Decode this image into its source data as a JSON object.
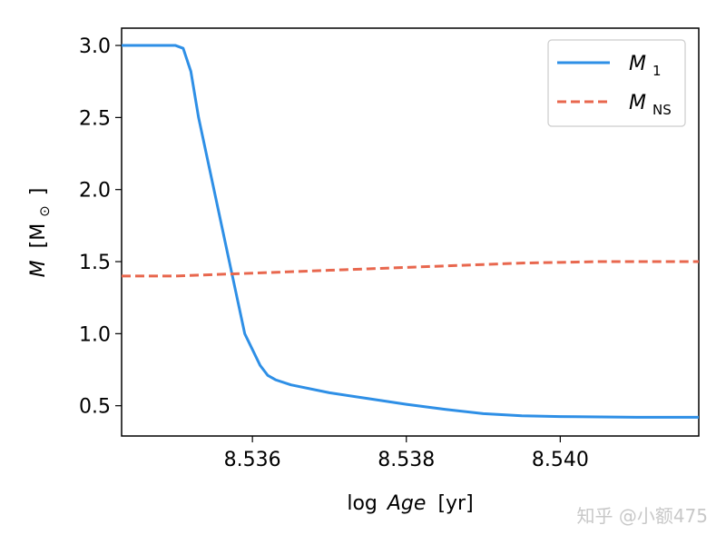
{
  "chart_data": {
    "type": "line",
    "xlabel_prefix": "log",
    "xlabel_var": "Age",
    "xlabel_unit": "[yr]",
    "ylabel_var": "M",
    "ylabel_unit": "[M",
    "ylabel_sun": "⊙",
    "ylabel_close": "]",
    "xlim": [
      8.5343,
      8.5418
    ],
    "ylim": [
      0.29,
      3.12
    ],
    "x_ticks": [
      8.536,
      8.538,
      8.54
    ],
    "x_tick_labels": [
      "8.536",
      "8.538",
      "8.540"
    ],
    "y_ticks": [
      0.5,
      1.0,
      1.5,
      2.0,
      2.5,
      3.0
    ],
    "y_tick_labels": [
      "0.5",
      "1.0",
      "1.5",
      "2.0",
      "2.5",
      "3.0"
    ],
    "grid": false,
    "legend_position": "top-right",
    "series": [
      {
        "name": "M",
        "name_sub": "1",
        "color": "#2e8fe6",
        "style": "solid",
        "x": [
          8.5343,
          8.5348,
          8.535,
          8.5351,
          8.5352,
          8.5353,
          8.5355,
          8.5357,
          8.5359,
          8.5361,
          8.5362,
          8.5363,
          8.5365,
          8.537,
          8.5375,
          8.538,
          8.5385,
          8.539,
          8.5395,
          8.54,
          8.541,
          8.5418
        ],
        "y": [
          3.0,
          3.0,
          3.0,
          2.98,
          2.82,
          2.5,
          2.0,
          1.5,
          1.0,
          0.78,
          0.71,
          0.68,
          0.645,
          0.59,
          0.55,
          0.51,
          0.475,
          0.445,
          0.43,
          0.425,
          0.42,
          0.42
        ]
      },
      {
        "name": "M",
        "name_sub": "NS",
        "color": "#e8674e",
        "style": "dashed",
        "x": [
          8.5343,
          8.535,
          8.5355,
          8.536,
          8.5365,
          8.537,
          8.5375,
          8.538,
          8.5385,
          8.539,
          8.5395,
          8.54,
          8.5405,
          8.541,
          8.5418
        ],
        "y": [
          1.4,
          1.4,
          1.41,
          1.42,
          1.43,
          1.44,
          1.45,
          1.46,
          1.47,
          1.48,
          1.49,
          1.495,
          1.5,
          1.5,
          1.5
        ]
      }
    ]
  },
  "watermark": "知乎 @小额475"
}
